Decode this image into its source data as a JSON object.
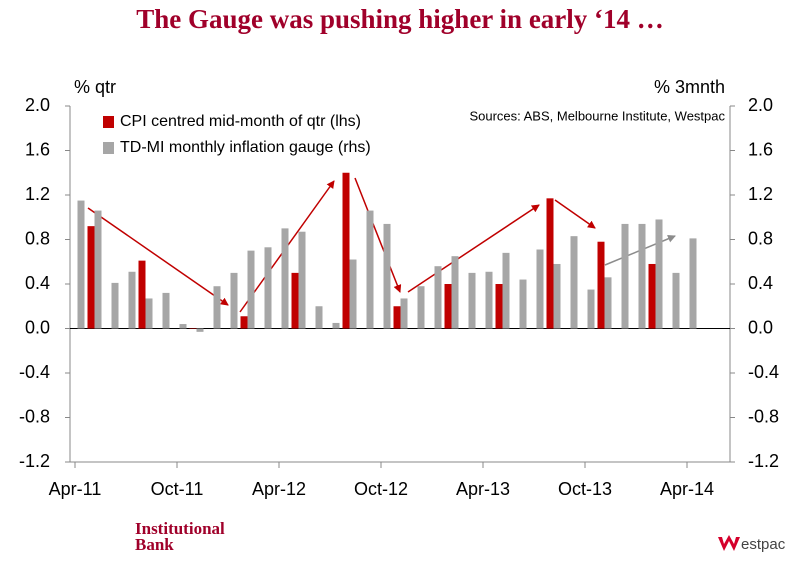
{
  "chart_data": {
    "type": "bar",
    "title": "The Gauge was pushing higher in early ‘14 …",
    "ylabel": "% qtr",
    "y2label": "% 3mnth",
    "annotation": "Sources: ABS, Melbourne Institute, Westpac",
    "categories": [
      "Apr-11",
      null,
      null,
      null,
      null,
      null,
      "Oct-11",
      null,
      null,
      null,
      null,
      null,
      "Apr-12",
      null,
      null,
      null,
      null,
      null,
      "Oct-12",
      null,
      null,
      null,
      null,
      null,
      "Apr-13",
      null,
      null,
      null,
      null,
      null,
      "Oct-13",
      null,
      null,
      null,
      null,
      null,
      "Apr-14"
    ],
    "series": [
      {
        "name": "CPI centred mid-month of qtr (lhs)",
        "color": "#c00000",
        "values": [
          null,
          0.92,
          null,
          null,
          0.61,
          null,
          null,
          0.0,
          null,
          null,
          0.11,
          null,
          null,
          0.5,
          null,
          null,
          1.4,
          null,
          null,
          0.2,
          null,
          null,
          0.4,
          null,
          null,
          0.4,
          null,
          null,
          1.17,
          null,
          null,
          0.78,
          null,
          null,
          0.58,
          null,
          null
        ]
      },
      {
        "name": "TD-MI monthly inflation gauge (rhs)",
        "color": "#a6a6a6",
        "axis": "y2",
        "values": [
          1.15,
          1.06,
          0.41,
          0.51,
          0.27,
          0.32,
          0.04,
          -0.03,
          0.38,
          0.5,
          0.7,
          0.73,
          0.9,
          0.87,
          0.2,
          0.05,
          0.62,
          1.06,
          0.94,
          0.27,
          0.38,
          0.56,
          0.65,
          0.5,
          0.51,
          0.68,
          0.44,
          0.71,
          0.58,
          0.83,
          0.35,
          0.46,
          0.94,
          0.94,
          0.98,
          0.5,
          0.81
        ]
      }
    ],
    "ylim": [
      -1.2,
      2.0
    ],
    "yticks": [
      {
        "value": -1.2,
        "label": "-1.2"
      },
      {
        "value": -0.8,
        "label": "-0.8"
      },
      {
        "value": -0.4,
        "label": "-0.4"
      },
      {
        "value": 0,
        "label": "0.0"
      },
      {
        "value": 0.4,
        "label": "0.4"
      },
      {
        "value": 0.8,
        "label": "0.8"
      },
      {
        "value": 1.2,
        "label": "1.2"
      },
      {
        "value": 1.6,
        "label": "1.6"
      },
      {
        "value": 2.0,
        "label": "2.0"
      }
    ],
    "y2lim": [
      -1.2,
      2.0
    ],
    "y2ticks": [
      {
        "value": -1.2,
        "label": "-1.2"
      },
      {
        "value": -0.8,
        "label": "-0.8"
      },
      {
        "value": -0.4,
        "label": "-0.4"
      },
      {
        "value": 0,
        "label": "0.0"
      },
      {
        "value": 0.4,
        "label": "0.4"
      },
      {
        "value": 0.8,
        "label": "0.8"
      },
      {
        "value": 1.2,
        "label": "1.2"
      },
      {
        "value": 1.6,
        "label": "1.6"
      },
      {
        "value": 2.0,
        "label": "2.0"
      }
    ],
    "legend": "top-left"
  },
  "footer": {
    "brand_line1": "Institutional",
    "brand_line2": "Bank",
    "logo": "estpac"
  }
}
